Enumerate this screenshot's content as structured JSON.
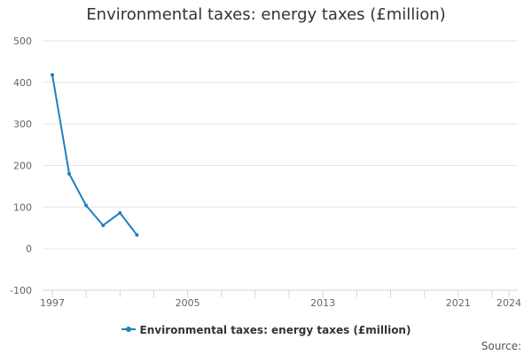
{
  "chart_data": {
    "type": "line",
    "title": "Environmental taxes: energy taxes (£million)",
    "xlabel": "",
    "ylabel": "",
    "xlim": [
      1997,
      2024
    ],
    "ylim": [
      -100,
      500
    ],
    "grid": true,
    "x_tick_labels": [
      "1997",
      "2005",
      "2013",
      "2021",
      "2024"
    ],
    "y_tick_labels": [
      "500",
      "400",
      "300",
      "200",
      "100",
      "0",
      "-100"
    ],
    "series": [
      {
        "name": "Environmental taxes: energy taxes (£million)",
        "x": [
          1997,
          1998,
          1999,
          2000,
          2001,
          2002
        ],
        "values": [
          418,
          180,
          104,
          56,
          86,
          33
        ]
      }
    ],
    "legend_position": "bottom",
    "source_label": "Source:",
    "colors": {
      "series": "#1f7fbf",
      "grid": "#e6e6e6",
      "axis": "#ccd6eb"
    }
  }
}
